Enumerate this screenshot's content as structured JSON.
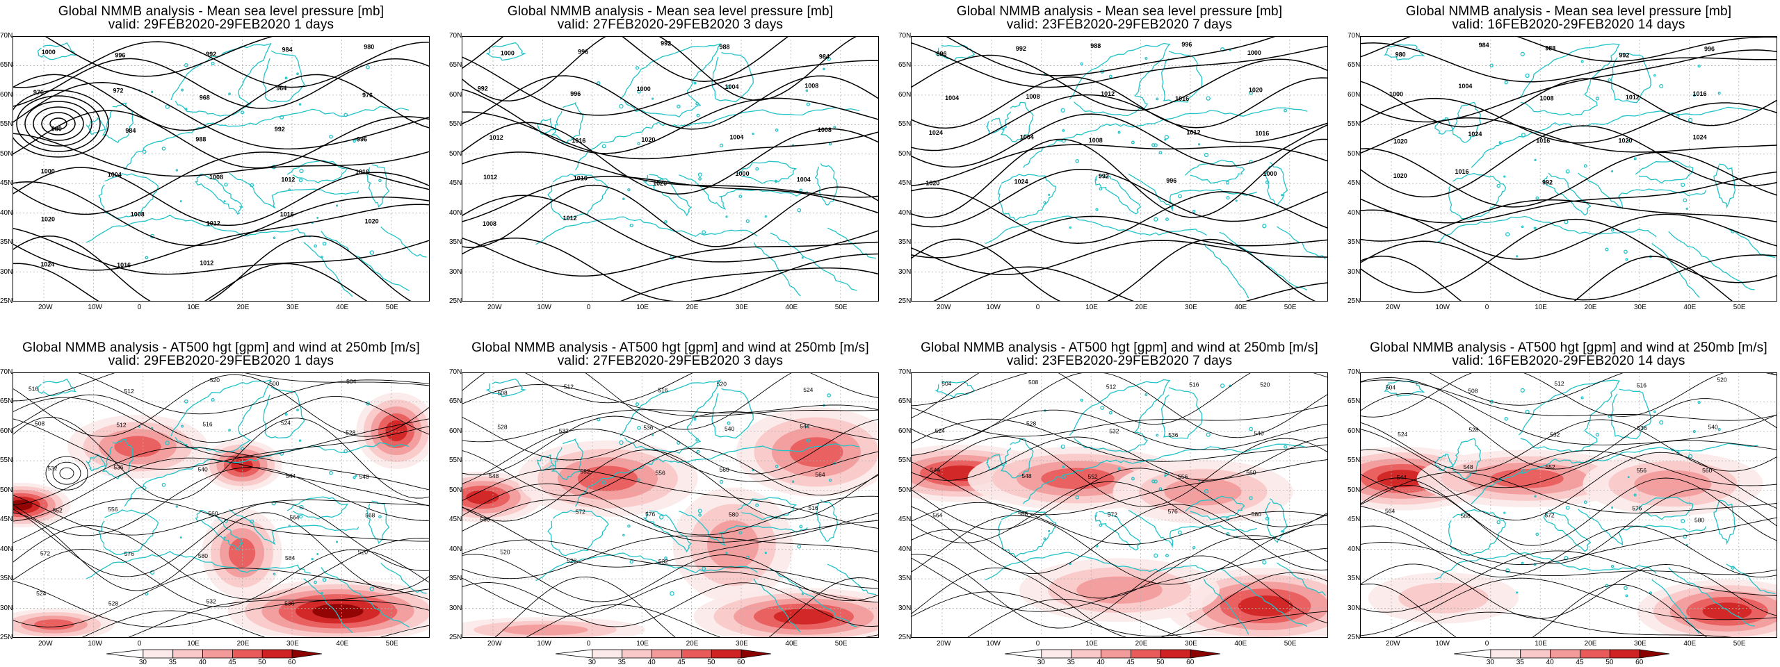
{
  "top_panels": [
    {
      "title_line1": "Global NMMB analysis - Mean sea level pressure [mb]",
      "title_line2": "valid: 29FEB2020-29FEB2020   1 days",
      "contour_labels": [
        "1000",
        "996",
        "992",
        "984",
        "980",
        "976",
        "972",
        "968",
        "964",
        "976",
        "980",
        "984",
        "988",
        "992",
        "996",
        "1000",
        "1004",
        "1008",
        "1012",
        "1016",
        "1020",
        "1008",
        "1012",
        "1016",
        "1020",
        "1024",
        "1016",
        "1012"
      ]
    },
    {
      "title_line1": "Global NMMB analysis - Mean sea level pressure [mb]",
      "title_line2": "valid: 27FEB2020-29FEB2020   3 days",
      "contour_labels": [
        "1000",
        "996",
        "992",
        "988",
        "984",
        "992",
        "996",
        "1000",
        "1004",
        "1008",
        "1012",
        "1016",
        "1020",
        "1004",
        "1008",
        "1012",
        "1016",
        "1020",
        "1000",
        "1004",
        "1008",
        "1012"
      ]
    },
    {
      "title_line1": "Global NMMB analysis - Mean sea level pressure [mb]",
      "title_line2": "valid: 23FEB2020-29FEB2020   7 days",
      "contour_labels": [
        "996",
        "992",
        "988",
        "996",
        "1000",
        "1004",
        "1008",
        "1012",
        "1016",
        "1020",
        "1024",
        "1004",
        "1008",
        "1012",
        "1016",
        "1020",
        "1024",
        "992",
        "996",
        "1000"
      ]
    },
    {
      "title_line1": "Global NMMB analysis - Mean sea level pressure [mb]",
      "title_line2": "valid: 16FEB2020-29FEB2020   14 days",
      "contour_labels": [
        "980",
        "984",
        "988",
        "992",
        "996",
        "1000",
        "1004",
        "1008",
        "1012",
        "1016",
        "1020",
        "1024",
        "1016",
        "1020",
        "1024",
        "1020",
        "1016",
        "992"
      ]
    }
  ],
  "bottom_panels": [
    {
      "title_line1": "Global NMMB analysis - AT500 hgt [gpm] and wind at 250mb [m/s]",
      "title_line2": "valid: 29FEB2020-29FEB2020   1 days",
      "contour_labels": [
        "516",
        "512",
        "520",
        "500",
        "504",
        "508",
        "512",
        "516",
        "524",
        "528",
        "532",
        "536",
        "540",
        "544",
        "548",
        "552",
        "556",
        "560",
        "564",
        "568",
        "572",
        "576",
        "580",
        "584",
        "520",
        "524",
        "528",
        "532",
        "536"
      ]
    },
    {
      "title_line1": "Global NMMB analysis - AT500 hgt [gpm] and wind at 250mb [m/s]",
      "title_line2": "valid: 27FEB2020-29FEB2020   3 days",
      "contour_labels": [
        "508",
        "512",
        "516",
        "520",
        "524",
        "528",
        "532",
        "536",
        "540",
        "544",
        "548",
        "552",
        "556",
        "560",
        "564",
        "568",
        "572",
        "576",
        "580",
        "516",
        "520",
        "528",
        "532"
      ]
    },
    {
      "title_line1": "Global NMMB analysis - AT500 hgt [gpm] and wind at 250mb [m/s]",
      "title_line2": "valid: 23FEB2020-29FEB2020   7 days",
      "contour_labels": [
        "504",
        "508",
        "512",
        "516",
        "520",
        "524",
        "528",
        "532",
        "536",
        "540",
        "544",
        "548",
        "552",
        "556",
        "560",
        "564",
        "568",
        "572",
        "576",
        "580"
      ]
    },
    {
      "title_line1": "Global NMMB analysis - AT500 hgt [gpm] and wind at 250mb [m/s]",
      "title_line2": "valid: 16FEB2020-29FEB2020   14 days",
      "contour_labels": [
        "504",
        "508",
        "512",
        "516",
        "520",
        "524",
        "528",
        "532",
        "536",
        "540",
        "544",
        "548",
        "552",
        "556",
        "560",
        "564",
        "568",
        "572",
        "576",
        "580"
      ]
    }
  ],
  "lat_labels": [
    "70N",
    "65N",
    "60N",
    "55N",
    "50N",
    "45N",
    "40N",
    "35N",
    "30N",
    "25N"
  ],
  "lon_labels": [
    "20W",
    "10W",
    "0",
    "10E",
    "20E",
    "30E",
    "40E",
    "50E"
  ],
  "colorbar_labels": [
    "30",
    "35",
    "40",
    "45",
    "50",
    "60"
  ],
  "colors": {
    "contour": "#000000",
    "coast": "#22c3c8",
    "grid": "#b0b0b0",
    "wind_levels": [
      "#fce9e9",
      "#f9c8c8",
      "#f39a9a",
      "#e95a5a",
      "#cf2222",
      "#8c0000"
    ]
  }
}
